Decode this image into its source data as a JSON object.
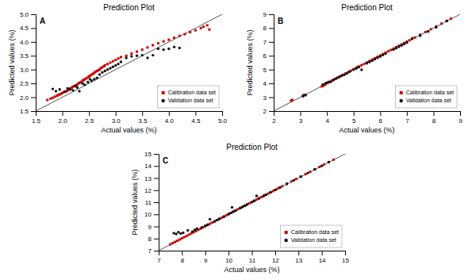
{
  "chart_data": [
    {
      "type": "scatter",
      "title": "Prediction Plot",
      "x_label": "Actual values (%)",
      "y_label": "Predicted values (%)",
      "annotations": [
        "A"
      ],
      "xlim": [
        1.5,
        5.0
      ],
      "ylim": [
        1.5,
        5.0
      ],
      "xticks": [
        1.5,
        {
          "value": 2.0,
          "label": "2.0"
        },
        2.5,
        {
          "value": 3.0,
          "label": "3.0"
        },
        3.5,
        {
          "value": 4.0,
          "label": "4.0"
        },
        4.5,
        {
          "value": 5.0,
          "label": "5.0"
        }
      ],
      "yticks": [
        1.5,
        {
          "value": 2.0,
          "label": "2.0"
        },
        2.5,
        {
          "value": 3.0,
          "label": "3.0"
        },
        3.5,
        {
          "value": 4.0,
          "label": "4.0"
        },
        4.5,
        {
          "value": 5.0,
          "label": "5.0"
        }
      ],
      "grid": false,
      "legend": "lower right",
      "series": [
        {
          "type": "line",
          "color": "#555555",
          "x": [
            1.5,
            5.0
          ],
          "values": [
            1.5,
            5.0
          ]
        },
        {
          "name": "Calibration data set",
          "color": "#cc0000",
          "marker": "square",
          "x": [
            1.72,
            1.78,
            1.82,
            1.86,
            1.9,
            1.92,
            1.95,
            1.97,
            2.0,
            2.02,
            2.05,
            2.08,
            2.1,
            2.12,
            2.15,
            2.18,
            2.2,
            2.22,
            2.25,
            2.28,
            2.3,
            2.32,
            2.35,
            2.38,
            2.4,
            2.42,
            2.45,
            2.48,
            2.5,
            2.52,
            2.55,
            2.58,
            2.6,
            2.62,
            2.65,
            2.68,
            2.7,
            2.72,
            2.75,
            2.78,
            2.8,
            2.85,
            2.9,
            2.95,
            3.0,
            3.05,
            3.1,
            3.2,
            3.3,
            3.4,
            3.5,
            3.6,
            3.7,
            3.8,
            3.9,
            4.0,
            4.1,
            4.2,
            4.3,
            4.4,
            4.5,
            4.6,
            4.65,
            4.72,
            4.76
          ],
          "values": [
            1.9,
            1.95,
            1.98,
            2.02,
            2.05,
            2.08,
            2.1,
            2.12,
            2.15,
            2.18,
            2.2,
            2.22,
            2.25,
            2.28,
            2.32,
            2.35,
            2.38,
            2.4,
            2.42,
            2.45,
            2.5,
            2.52,
            2.55,
            2.6,
            2.62,
            2.65,
            2.68,
            2.72,
            2.75,
            2.78,
            2.82,
            2.85,
            2.88,
            2.92,
            2.95,
            2.98,
            3.0,
            3.05,
            3.08,
            3.12,
            3.15,
            3.2,
            3.25,
            3.3,
            3.35,
            3.4,
            3.45,
            3.5,
            3.58,
            3.65,
            3.72,
            3.8,
            3.88,
            3.95,
            4.02,
            4.08,
            4.15,
            4.22,
            4.28,
            4.35,
            4.42,
            4.5,
            4.55,
            4.6,
            4.45
          ]
        },
        {
          "name": "Validation data set",
          "color": "#111111",
          "marker": "circle",
          "x": [
            1.82,
            1.88,
            1.95,
            2.05,
            2.1,
            2.15,
            2.2,
            2.25,
            2.28,
            2.32,
            2.38,
            2.42,
            2.48,
            2.52,
            2.55,
            2.6,
            2.65,
            2.7,
            2.75,
            2.8,
            2.85,
            2.9,
            2.95,
            3.0,
            3.05,
            3.1,
            3.2,
            3.3,
            3.4,
            3.5,
            3.6,
            3.7,
            3.8,
            3.9,
            4.0,
            4.1,
            4.2
          ],
          "values": [
            2.3,
            2.22,
            2.28,
            2.2,
            2.32,
            2.28,
            2.25,
            2.42,
            2.35,
            2.22,
            2.5,
            2.45,
            2.55,
            2.65,
            2.6,
            2.65,
            2.7,
            2.82,
            2.9,
            2.95,
            3.0,
            3.05,
            3.1,
            3.15,
            3.2,
            3.28,
            3.42,
            3.48,
            3.5,
            3.52,
            3.42,
            3.52,
            3.75,
            3.72,
            3.75,
            3.82,
            3.78
          ]
        }
      ]
    },
    {
      "type": "scatter",
      "title": "Prediction Plot",
      "x_label": "Actual values (%)",
      "y_label": "Predicted values (%)",
      "annotations": [
        "B"
      ],
      "xlim": [
        2.0,
        9.0
      ],
      "ylim": [
        2.0,
        9.0
      ],
      "xticks": [
        2,
        3,
        4,
        5,
        6,
        7,
        8,
        9
      ],
      "yticks": [
        2,
        3,
        4,
        5,
        6,
        7,
        8,
        9
      ],
      "grid": false,
      "legend": "lower right",
      "series": [
        {
          "type": "line",
          "color": "#555555",
          "x": [
            2.0,
            9.0
          ],
          "values": [
            2.0,
            9.0
          ]
        },
        {
          "name": "Calibration data set",
          "color": "#cc0000",
          "marker": "square",
          "x": [
            2.65,
            2.7,
            3.1,
            3.15,
            3.8,
            3.85,
            3.9,
            3.95,
            4.0,
            4.05,
            4.1,
            4.2,
            4.3,
            4.4,
            4.5,
            4.6,
            4.7,
            4.8,
            4.9,
            5.0,
            5.1,
            5.15,
            5.2,
            5.3,
            5.4,
            5.5,
            5.6,
            5.7,
            5.8,
            5.9,
            6.0,
            6.1,
            6.2,
            6.3,
            6.4,
            6.5,
            6.6,
            6.7,
            6.8,
            6.9,
            7.0,
            7.1,
            7.2,
            7.3,
            7.5,
            7.7,
            7.9,
            8.1,
            8.3,
            8.5,
            8.65
          ],
          "values": [
            2.75,
            2.8,
            3.12,
            3.18,
            3.78,
            3.82,
            3.88,
            3.95,
            4.02,
            4.08,
            4.12,
            4.22,
            4.32,
            4.42,
            4.52,
            4.62,
            4.72,
            4.82,
            4.92,
            5.02,
            5.12,
            5.18,
            5.22,
            5.32,
            5.42,
            5.52,
            5.62,
            5.72,
            5.82,
            5.92,
            6.02,
            6.12,
            6.22,
            6.32,
            6.42,
            6.52,
            6.62,
            6.72,
            6.82,
            6.92,
            7.02,
            7.12,
            7.22,
            7.32,
            7.52,
            7.72,
            7.92,
            8.12,
            8.32,
            8.52,
            8.68
          ]
        },
        {
          "name": "Validation data set",
          "color": "#111111",
          "marker": "circle",
          "x": [
            3.1,
            3.2,
            3.85,
            3.95,
            4.05,
            4.15,
            4.25,
            4.35,
            4.45,
            4.55,
            4.65,
            4.75,
            4.85,
            5.0,
            5.1,
            5.2,
            5.3,
            5.5,
            5.6,
            5.7,
            5.8,
            5.9,
            6.0,
            6.1,
            6.2,
            6.5,
            6.6,
            6.7,
            6.8,
            6.9,
            7.0,
            7.2,
            7.5,
            7.8,
            8.1,
            8.5
          ],
          "values": [
            3.08,
            3.15,
            3.92,
            4.02,
            4.08,
            4.12,
            4.25,
            4.35,
            4.45,
            4.55,
            4.62,
            4.72,
            4.85,
            5.0,
            5.08,
            5.18,
            4.98,
            5.45,
            5.55,
            5.65,
            5.75,
            5.85,
            5.95,
            6.05,
            6.15,
            6.45,
            6.55,
            6.65,
            6.75,
            6.85,
            6.95,
            7.25,
            7.45,
            7.75,
            8.05,
            8.52
          ]
        }
      ]
    },
    {
      "type": "scatter",
      "title": "Prediction Plot",
      "x_label": "Actual values (%)",
      "y_label": "Predicted values (%)",
      "annotations": [
        "C"
      ],
      "xlim": [
        7.0,
        15.0
      ],
      "ylim": [
        7.0,
        15.0
      ],
      "xticks": [
        7,
        8,
        9,
        10,
        11,
        12,
        13,
        14,
        15
      ],
      "yticks": [
        7,
        8,
        9,
        10,
        11,
        12,
        13,
        14,
        15
      ],
      "grid": false,
      "legend": "lower right",
      "series": [
        {
          "type": "line",
          "color": "#555555",
          "x": [
            7.0,
            15.0
          ],
          "values": [
            7.0,
            15.0
          ]
        },
        {
          "name": "Calibration data set",
          "color": "#cc0000",
          "marker": "square",
          "x": [
            7.5,
            7.6,
            7.7,
            7.8,
            7.9,
            8.0,
            8.1,
            8.2,
            8.3,
            8.4,
            8.5,
            8.6,
            8.7,
            8.8,
            8.9,
            9.0,
            9.1,
            9.2,
            9.3,
            9.4,
            9.5,
            9.6,
            9.7,
            9.8,
            9.9,
            10.0,
            10.1,
            10.2,
            10.3,
            10.4,
            10.5,
            10.6,
            10.7,
            10.8,
            10.9,
            11.0,
            11.1,
            11.2,
            11.3,
            11.4,
            11.5,
            11.6,
            11.7,
            11.8,
            11.9,
            12.0,
            12.1,
            12.2,
            12.3,
            12.5,
            12.7,
            12.9,
            13.1,
            13.3,
            13.5,
            13.7,
            13.9,
            14.1,
            14.3,
            14.5
          ],
          "values": [
            7.52,
            7.62,
            7.72,
            7.82,
            7.92,
            8.02,
            8.12,
            8.22,
            8.32,
            8.42,
            8.52,
            8.62,
            8.72,
            8.82,
            8.92,
            9.02,
            9.12,
            9.22,
            9.32,
            9.42,
            9.52,
            9.62,
            9.72,
            9.82,
            9.92,
            10.02,
            10.12,
            10.22,
            10.32,
            10.42,
            10.52,
            10.62,
            10.72,
            10.82,
            10.92,
            11.02,
            11.12,
            11.22,
            11.32,
            11.42,
            11.52,
            11.62,
            11.72,
            11.82,
            11.92,
            12.02,
            12.12,
            12.22,
            12.32,
            12.52,
            12.72,
            12.92,
            13.12,
            13.32,
            13.52,
            13.72,
            13.92,
            14.12,
            14.32,
            14.52
          ]
        },
        {
          "name": "Validation data set",
          "color": "#111111",
          "marker": "circle",
          "x": [
            7.65,
            7.75,
            7.85,
            7.95,
            8.05,
            8.25,
            8.45,
            8.55,
            8.65,
            8.85,
            9.0,
            9.1,
            9.2,
            9.4,
            9.5,
            9.6,
            9.8,
            10.0,
            10.1,
            10.15,
            10.2,
            10.3,
            10.5,
            10.6,
            10.7,
            10.8,
            11.0,
            11.1,
            11.2,
            11.3,
            11.5,
            11.6,
            11.8,
            12.0,
            12.2,
            12.5,
            12.8,
            13.1,
            13.4,
            13.7,
            14.0,
            14.3
          ],
          "values": [
            8.45,
            8.38,
            8.52,
            8.42,
            8.48,
            8.68,
            8.58,
            8.72,
            8.82,
            8.92,
            9.05,
            9.15,
            9.6,
            9.42,
            9.52,
            9.62,
            9.8,
            10.02,
            10.12,
            10.58,
            10.22,
            10.32,
            10.52,
            10.62,
            10.72,
            10.82,
            11.02,
            11.12,
            11.52,
            11.32,
            11.52,
            11.62,
            11.82,
            12.02,
            12.22,
            12.52,
            12.82,
            13.12,
            13.42,
            13.72,
            14.02,
            14.32
          ]
        }
      ]
    }
  ]
}
